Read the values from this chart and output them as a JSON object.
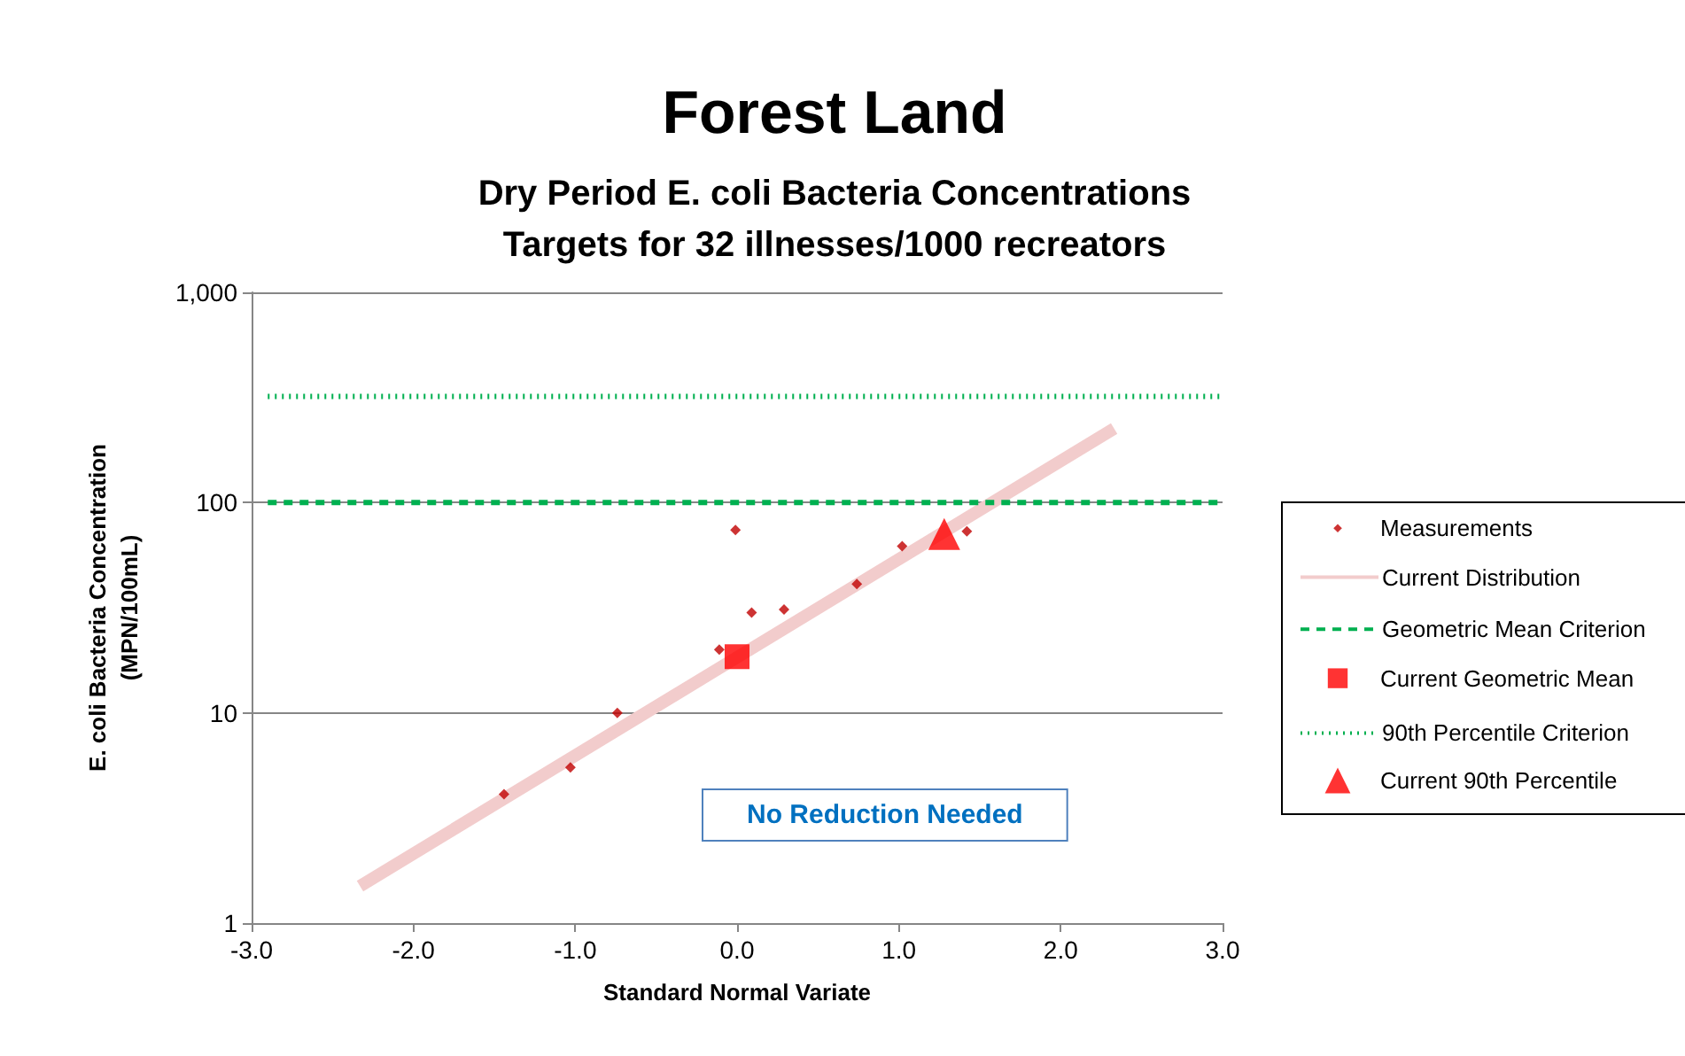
{
  "chart_data": {
    "type": "scatter",
    "title": "Forest Land",
    "subtitle": "Dry Period E. coli Bacteria Concentrations\nTargets for 32 illnesses/1000 recreators",
    "xlabel": "Standard Normal Variate",
    "ylabel": "E. coli Bacteria Concentration\n(MPN/100mL)",
    "annotations": [
      "No Reduction Needed"
    ],
    "series": [
      {
        "name": "Measurements",
        "marker": "diamond",
        "color": "#c00000",
        "x": [
          -1.44,
          -1.03,
          -0.74,
          -0.11,
          -0.01,
          0.09,
          0.29,
          0.74,
          1.02,
          1.42
        ],
        "values": [
          4.1,
          5.5,
          10,
          20,
          74,
          30,
          31,
          41,
          62,
          73
        ]
      },
      {
        "name": "Current Distribution",
        "type": "line",
        "marker": "none",
        "line_style": "solid",
        "color": "#f2cccc",
        "x": [
          -2.33,
          2.33
        ],
        "values": [
          1.5,
          225
        ]
      },
      {
        "name": "Geometric Mean Criterion",
        "type": "line",
        "marker": "none",
        "line_style": "dashed",
        "color": "#00b050",
        "x": [
          -2.9,
          3.0
        ],
        "values": [
          100,
          100
        ]
      },
      {
        "name": "Current Geometric Mean",
        "marker": "square",
        "color": "#ff0000",
        "x": [
          0
        ],
        "values": [
          18.5
        ]
      },
      {
        "name": "90th Percentile Criterion",
        "type": "line",
        "marker": "none",
        "line_style": "dotted",
        "color": "#00b050",
        "x": [
          -2.9,
          3.0
        ],
        "values": [
          320,
          320
        ]
      },
      {
        "name": "Current 90th Percentile",
        "marker": "triangle",
        "color": "#ff0000",
        "x": [
          1.28
        ],
        "values": [
          71
        ]
      }
    ],
    "xlim": [
      -3,
      3
    ],
    "xticks": [
      {
        "value": -3,
        "label": "-3.0"
      },
      {
        "value": -2,
        "label": "-2.0"
      },
      {
        "value": -1,
        "label": "-1.0"
      },
      {
        "value": 0,
        "label": "0.0"
      },
      {
        "value": 1,
        "label": "1.0"
      },
      {
        "value": 2,
        "label": "2.0"
      },
      {
        "value": 3,
        "label": "3.0"
      }
    ],
    "ylim": [
      1,
      1000
    ],
    "yticks": [
      1,
      10,
      100,
      {
        "value": 1000,
        "label": "1,000"
      }
    ],
    "log": "y",
    "grid": "y",
    "legend": "right"
  }
}
